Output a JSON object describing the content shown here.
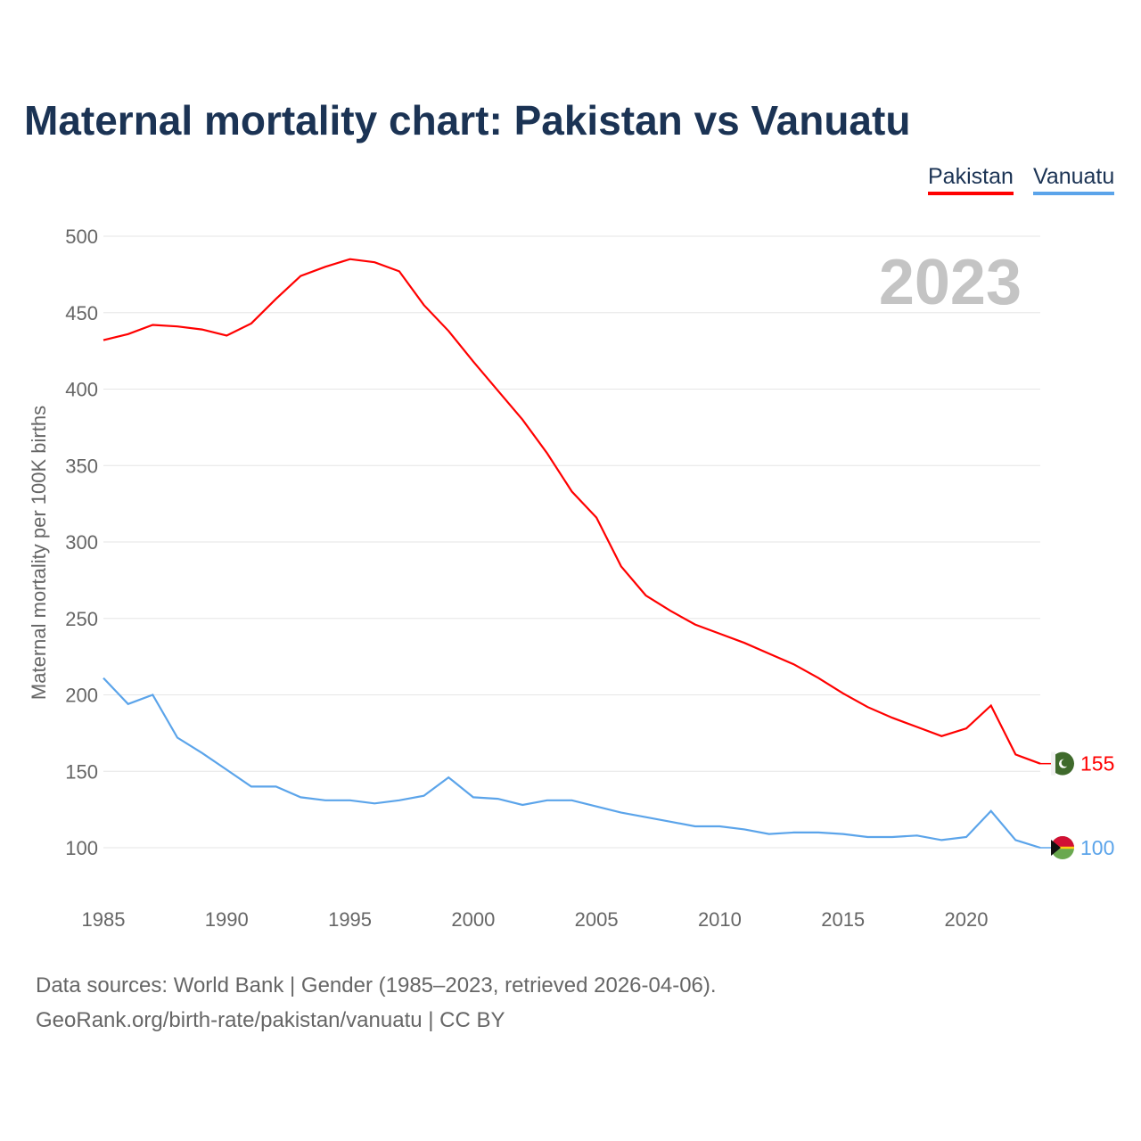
{
  "chart_data": {
    "type": "line",
    "title": "Maternal mortality chart: Pakistan vs Vanuatu",
    "xlabel": "",
    "ylabel": "Maternal mortality per 100K births",
    "xlim": [
      1985,
      2023
    ],
    "ylim": [
      100,
      500
    ],
    "yticks": [
      100,
      150,
      200,
      250,
      300,
      350,
      400,
      450,
      500
    ],
    "xticks": [
      1985,
      1990,
      1995,
      2000,
      2005,
      2010,
      2015,
      2020
    ],
    "grid": true,
    "legend_placement": "top-right",
    "year_label": "2023",
    "x": [
      1985,
      1986,
      1987,
      1988,
      1989,
      1990,
      1991,
      1992,
      1993,
      1994,
      1995,
      1996,
      1997,
      1998,
      1999,
      2000,
      2001,
      2002,
      2003,
      2004,
      2005,
      2006,
      2007,
      2008,
      2009,
      2010,
      2011,
      2012,
      2013,
      2014,
      2015,
      2016,
      2017,
      2018,
      2019,
      2020,
      2021,
      2022,
      2023
    ],
    "series": [
      {
        "name": "Pakistan",
        "color": "#ff0000",
        "end_label": "155",
        "flag": "pakistan-flag",
        "values": [
          432,
          436,
          442,
          441,
          439,
          435,
          443,
          459,
          474,
          480,
          485,
          483,
          477,
          455,
          438,
          418,
          399,
          380,
          358,
          333,
          316,
          284,
          265,
          255,
          246,
          240,
          234,
          227,
          220,
          211,
          201,
          192,
          185,
          179,
          173,
          178,
          193,
          161,
          155
        ]
      },
      {
        "name": "Vanuatu",
        "color": "#5ba4ea",
        "end_label": "100",
        "flag": "vanuatu-flag",
        "values": [
          211,
          194,
          200,
          172,
          162,
          151,
          140,
          140,
          133,
          131,
          131,
          129,
          131,
          134,
          146,
          133,
          132,
          128,
          131,
          131,
          127,
          123,
          120,
          117,
          114,
          114,
          112,
          109,
          110,
          110,
          109,
          107,
          107,
          108,
          105,
          107,
          124,
          105,
          100
        ]
      }
    ]
  },
  "footer": {
    "source_line": "Data sources: World Bank | Gender (1985–2023, retrieved 2026-04-06).",
    "credit_line": "GeoRank.org/birth-rate/pakistan/vanuatu | CC BY"
  }
}
